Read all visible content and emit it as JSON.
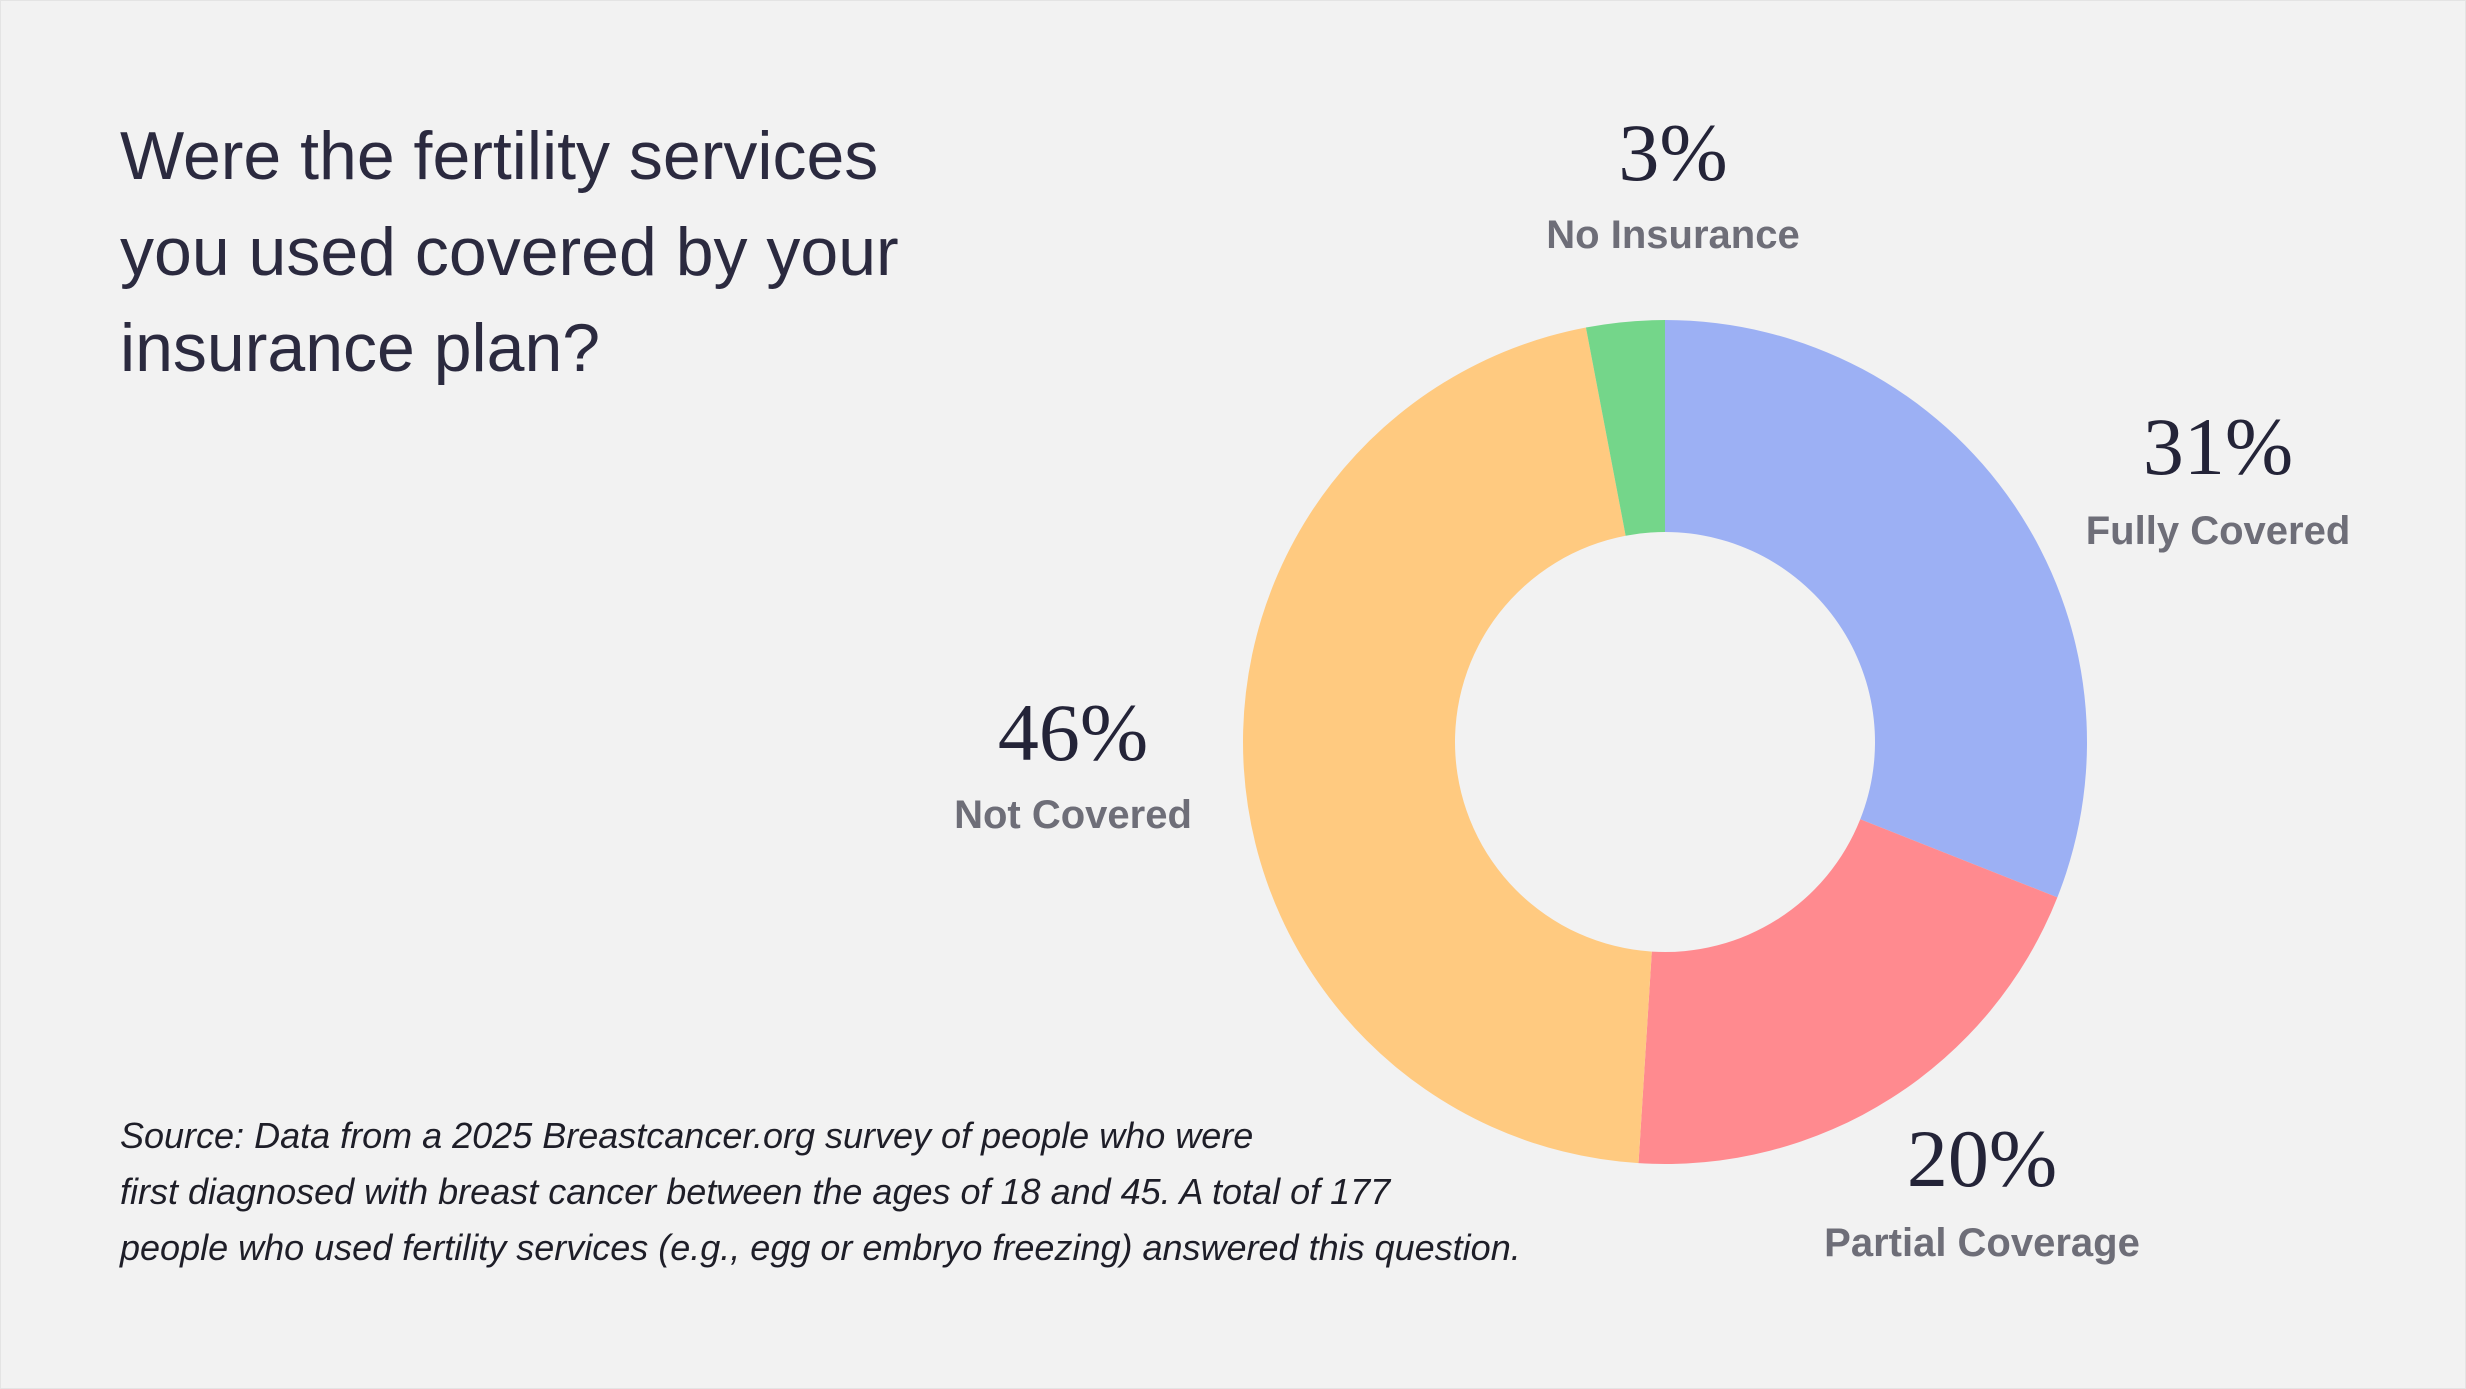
{
  "title_lines": [
    "Were the fertility services",
    "you used covered by your",
    "insurance plan?"
  ],
  "source_lines": [
    "Source: Data from a 2025 Breastcancer.org survey of people who were",
    "first diagnosed with breast cancer between the ages of 18 and 45. A total of 177",
    "people who used fertility services (e.g., egg or embryo freezing) answered this question."
  ],
  "chart_data": {
    "type": "pie",
    "variant": "donut",
    "title": "Were the fertility services you used covered by your insurance plan?",
    "slices": [
      {
        "label": "Fully Covered",
        "value": 31,
        "display": "31%",
        "color": "#9cb0f4"
      },
      {
        "label": "Partial Coverage",
        "value": 20,
        "display": "20%",
        "color": "#ff8a8f"
      },
      {
        "label": "Not Covered",
        "value": 46,
        "display": "46%",
        "color": "#ffca80"
      },
      {
        "label": "No Insurance",
        "value": 3,
        "display": "3%",
        "color": "#74d68a"
      }
    ],
    "start": "top",
    "direction": "clockwise",
    "legend": "none"
  }
}
